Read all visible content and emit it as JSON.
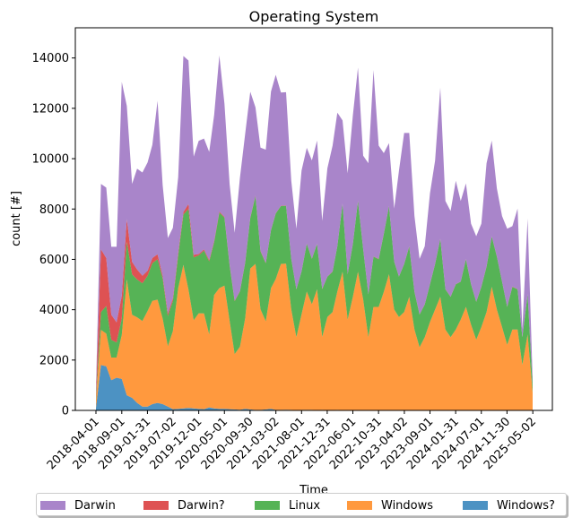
{
  "chart_data": {
    "type": "area",
    "stacked": true,
    "title": "Operating System",
    "xlabel": "Time",
    "ylabel": "count [#]",
    "ylim": [
      0,
      15200
    ],
    "yticks": [
      0,
      2000,
      4000,
      6000,
      8000,
      10000,
      12000,
      14000
    ],
    "xticks": [
      "2018-04-01",
      "2018-09-01",
      "2019-01-31",
      "2019-07-02",
      "2019-12-01",
      "2020-05-01",
      "2020-09-30",
      "2021-03-02",
      "2021-08-01",
      "2021-12-31",
      "2022-06-01",
      "2022-10-31",
      "2023-04-02",
      "2023-09-01",
      "2024-01-31",
      "2024-07-01",
      "2024-11-30",
      "2025-05-02"
    ],
    "x": [
      "2018-04-01",
      "2018-05-01",
      "2018-06-01",
      "2018-07-01",
      "2018-08-01",
      "2018-09-01",
      "2018-10-01",
      "2018-11-01",
      "2018-12-01",
      "2019-01-01",
      "2019-02-01",
      "2019-03-01",
      "2019-04-01",
      "2019-05-01",
      "2019-06-01",
      "2019-07-01",
      "2019-08-01",
      "2019-09-01",
      "2019-10-01",
      "2019-11-01",
      "2019-12-01",
      "2020-01-01",
      "2020-02-01",
      "2020-03-01",
      "2020-04-01",
      "2020-05-01",
      "2020-06-01",
      "2020-07-01",
      "2020-08-01",
      "2020-09-01",
      "2020-10-01",
      "2020-11-01",
      "2020-12-01",
      "2021-01-01",
      "2021-02-01",
      "2021-03-01",
      "2021-04-01",
      "2021-05-01",
      "2021-06-01",
      "2021-07-01",
      "2021-08-01",
      "2021-09-01",
      "2021-10-01",
      "2021-11-01",
      "2021-12-01",
      "2022-01-01",
      "2022-02-01",
      "2022-03-01",
      "2022-04-01",
      "2022-05-01",
      "2022-06-01",
      "2022-07-01",
      "2022-08-01",
      "2022-09-01",
      "2022-10-01",
      "2022-11-01",
      "2022-12-01",
      "2023-01-01",
      "2023-02-01",
      "2023-03-01",
      "2023-04-01",
      "2023-05-01",
      "2023-06-01",
      "2023-07-01",
      "2023-08-01",
      "2023-09-01",
      "2023-10-01",
      "2023-11-01",
      "2023-12-01",
      "2024-01-01",
      "2024-02-01",
      "2024-03-01",
      "2024-04-01",
      "2024-05-01",
      "2024-06-01",
      "2024-07-01",
      "2024-08-01",
      "2024-09-01",
      "2024-10-01",
      "2024-11-01",
      "2024-12-01",
      "2025-01-01",
      "2025-02-01",
      "2025-03-01",
      "2025-04-01",
      "2025-05-01"
    ],
    "series": [
      {
        "name": "Windows?",
        "color": "#1f77b4",
        "values": [
          100,
          1800,
          1750,
          1200,
          1300,
          1250,
          600,
          500,
          300,
          150,
          150,
          250,
          300,
          250,
          150,
          50,
          60,
          80,
          100,
          80,
          60,
          50,
          120,
          80,
          60,
          60,
          50,
          40,
          30,
          60,
          40,
          20,
          20,
          40,
          60,
          20,
          20,
          30,
          20,
          10,
          20,
          20,
          20,
          10,
          20,
          10,
          10,
          20,
          10,
          10,
          10,
          10,
          10,
          10,
          10,
          10,
          10,
          10,
          10,
          10,
          10,
          10,
          10,
          10,
          10,
          10,
          10,
          10,
          10,
          10,
          10,
          10,
          10,
          10,
          10,
          10,
          10,
          10,
          10,
          10,
          10,
          10,
          10,
          10,
          10,
          10
        ]
      },
      {
        "name": "Windows",
        "color": "#ff7f0e",
        "values": [
          300,
          1400,
          1300,
          900,
          800,
          1750,
          4600,
          3300,
          3400,
          3400,
          3800,
          4100,
          4100,
          3400,
          2400,
          3100,
          4800,
          5700,
          4700,
          3500,
          3800,
          3800,
          2900,
          4500,
          4800,
          4900,
          3500,
          2200,
          2500,
          3600,
          5600,
          5800,
          4000,
          3500,
          4800,
          5200,
          5800,
          5800,
          4000,
          2900,
          3800,
          4700,
          4200,
          4800,
          2900,
          3700,
          3900,
          4700,
          5500,
          3600,
          4500,
          5500,
          4400,
          2900,
          4100,
          4100,
          4700,
          5400,
          4000,
          3700,
          3900,
          4500,
          3200,
          2500,
          2900,
          3500,
          4000,
          4500,
          3200,
          2900,
          3200,
          3600,
          4100,
          3400,
          2800,
          3300,
          3900,
          4900,
          4000,
          3300,
          2600,
          3200,
          3200,
          1800,
          3000,
          700
        ]
      },
      {
        "name": "Linux",
        "color": "#2ca02c",
        "values": [
          100,
          700,
          1100,
          700,
          600,
          650,
          1500,
          1600,
          1500,
          1500,
          1400,
          1500,
          1600,
          1600,
          1200,
          1200,
          1300,
          2000,
          3200,
          2500,
          2300,
          2500,
          2900,
          2100,
          3000,
          2700,
          2200,
          2100,
          2200,
          2200,
          2000,
          2700,
          2300,
          2300,
          2300,
          2600,
          2300,
          2300,
          2000,
          1900,
          1700,
          1900,
          1800,
          1800,
          1900,
          1600,
          1600,
          1800,
          2700,
          1800,
          2100,
          2800,
          2000,
          1700,
          2000,
          1900,
          2300,
          2700,
          1900,
          1600,
          1900,
          2000,
          1500,
          1300,
          1300,
          1500,
          1800,
          2300,
          1600,
          1600,
          1800,
          1500,
          1900,
          1600,
          1500,
          1600,
          1800,
          2000,
          2100,
          1800,
          1500,
          1700,
          1600,
          1100,
          1600,
          300
        ]
      },
      {
        "name": "Darwin?",
        "color": "#d62728",
        "values": [
          100,
          2500,
          1900,
          1000,
          800,
          900,
          900,
          500,
          400,
          300,
          200,
          200,
          200,
          100,
          100,
          100,
          100,
          100,
          200,
          100,
          50,
          50,
          50,
          50,
          40,
          30,
          30,
          20,
          20,
          20,
          20,
          20,
          20,
          20,
          10,
          10,
          10,
          10,
          10,
          10,
          10,
          10,
          10,
          10,
          10,
          10,
          10,
          10,
          10,
          10,
          10,
          10,
          10,
          10,
          10,
          10,
          10,
          10,
          10,
          10,
          10,
          10,
          10,
          10,
          10,
          10,
          10,
          10,
          10,
          10,
          10,
          10,
          10,
          10,
          10,
          10,
          10,
          10,
          10,
          10,
          10,
          10,
          10,
          10,
          10,
          10
        ]
      },
      {
        "name": "Darwin",
        "color": "#9467bd",
        "values": [
          200,
          2600,
          2800,
          2700,
          3000,
          8500,
          4500,
          3100,
          4000,
          4100,
          4300,
          4500,
          6100,
          3600,
          3000,
          2800,
          3000,
          6200,
          5700,
          3900,
          4500,
          4400,
          4300,
          5000,
          6200,
          4500,
          3200,
          2700,
          4500,
          5100,
          5000,
          3500,
          4100,
          4500,
          5500,
          5500,
          4500,
          4500,
          3100,
          2400,
          4000,
          3800,
          3900,
          4100,
          2700,
          4300,
          5000,
          5300,
          3300,
          4000,
          5100,
          5300,
          3700,
          5200,
          7400,
          4500,
          3200,
          2500,
          2100,
          4200,
          5200,
          4500,
          3000,
          2200,
          2300,
          3600,
          4100,
          6000,
          3500,
          3400,
          4100,
          3200,
          3000,
          2400,
          2600,
          2500,
          4100,
          3800,
          2700,
          2600,
          3100,
          2400,
          3200,
          300,
          3000,
          200
        ]
      }
    ],
    "legend": {
      "placement": "bottom-center",
      "order": [
        "Darwin",
        "Darwin?",
        "Linux",
        "Windows",
        "Windows?"
      ]
    },
    "grid": false
  }
}
